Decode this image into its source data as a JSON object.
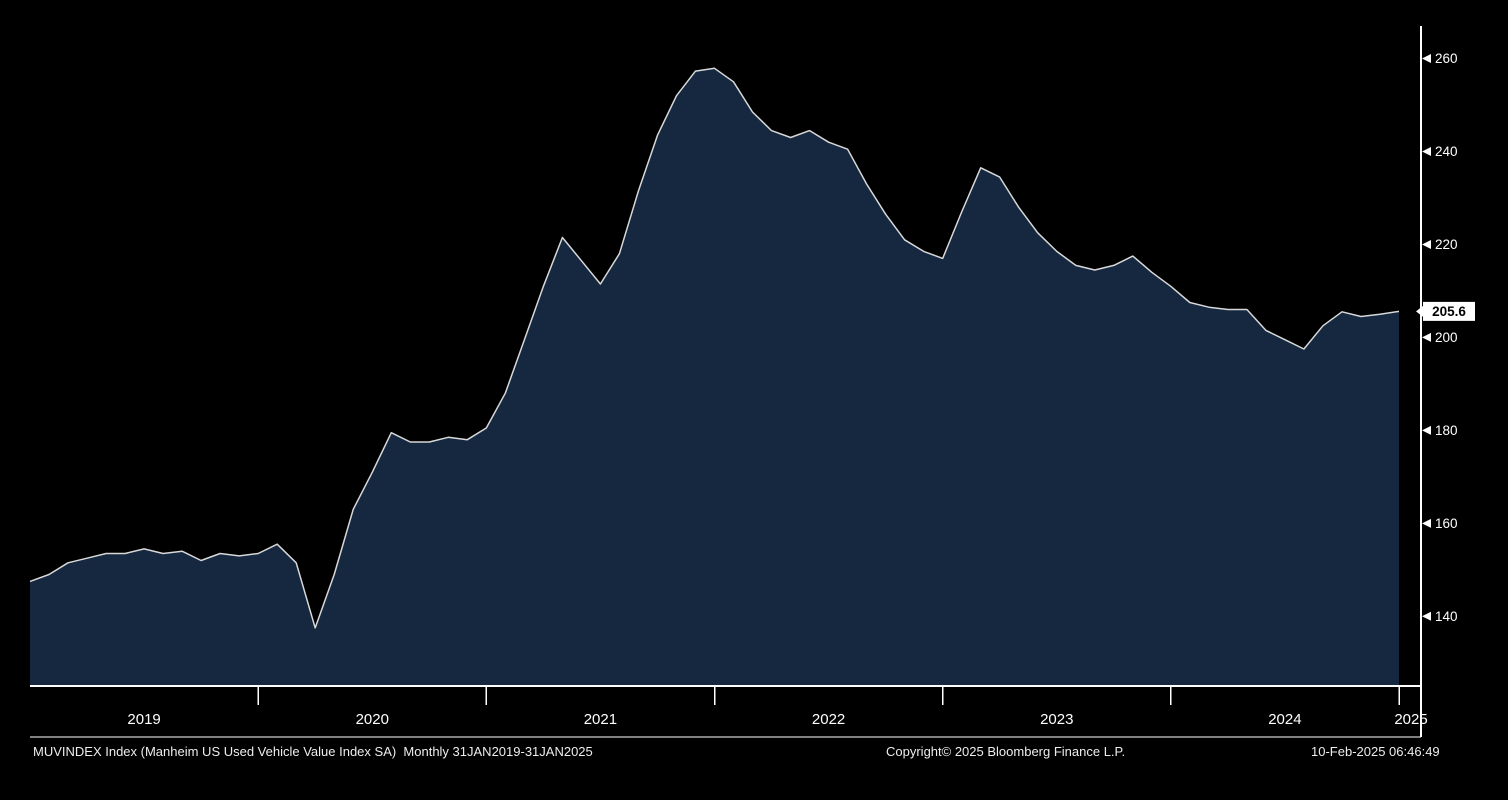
{
  "chart_data": {
    "type": "area",
    "title": "Manheim US Used Vehicle Value Index SA",
    "security": "MUVINDEX Index",
    "frequency": "Monthly",
    "period": "31JAN2019-31JAN2025",
    "x_unit": "month",
    "categories_years": [
      "2019",
      "2020",
      "2021",
      "2022",
      "2023",
      "2024",
      "2025"
    ],
    "values_by_year": {
      "2019": [
        147.5,
        149,
        151.5,
        152.5,
        153.5,
        153.5,
        154.5,
        153.5,
        154,
        152,
        153.5,
        153
      ],
      "2020": [
        153.5,
        155.5,
        151.5,
        137.5,
        149,
        163,
        171,
        179.5,
        177.5,
        177.5,
        178.5,
        178
      ],
      "2021": [
        180.5,
        188,
        199.5,
        211,
        221.5,
        216.5,
        211.5,
        218,
        231.5,
        243.5,
        252,
        257.3
      ],
      "2022": [
        257.9,
        255,
        248.5,
        244.5,
        243,
        244.5,
        242,
        240.5,
        233,
        226.5,
        221,
        218.5
      ],
      "2023": [
        217,
        227,
        236.5,
        234.5,
        228,
        222.5,
        218.5,
        215.5,
        214.5,
        215.5,
        217.5,
        214
      ],
      "2024": [
        211,
        207.5,
        206.5,
        206,
        206,
        201.5,
        199.5,
        197.5,
        202.5,
        205.5,
        204.5,
        205
      ],
      "2025": [
        205.6
      ]
    },
    "last_value": "205.6",
    "y_ticks": [
      140,
      160,
      180,
      200,
      220,
      240,
      260
    ],
    "ylim": [
      125,
      267
    ],
    "grid": false,
    "legend_position": "none",
    "colors": {
      "background": "#000000",
      "area_fill": "#152840",
      "line": "#d8d8d8",
      "axis": "#ffffff",
      "tick_label": "#ffffff",
      "last_value_box_bg": "#ffffff",
      "last_value_box_text": "#000000"
    }
  },
  "footer": {
    "left_text": "MUVINDEX Index (Manheim US Used Vehicle Value Index SA)  Monthly 31JAN2019-31JAN2025",
    "copyright": "Copyright© 2025 Bloomberg Finance L.P.",
    "timestamp": "10-Feb-2025 06:46:49"
  }
}
